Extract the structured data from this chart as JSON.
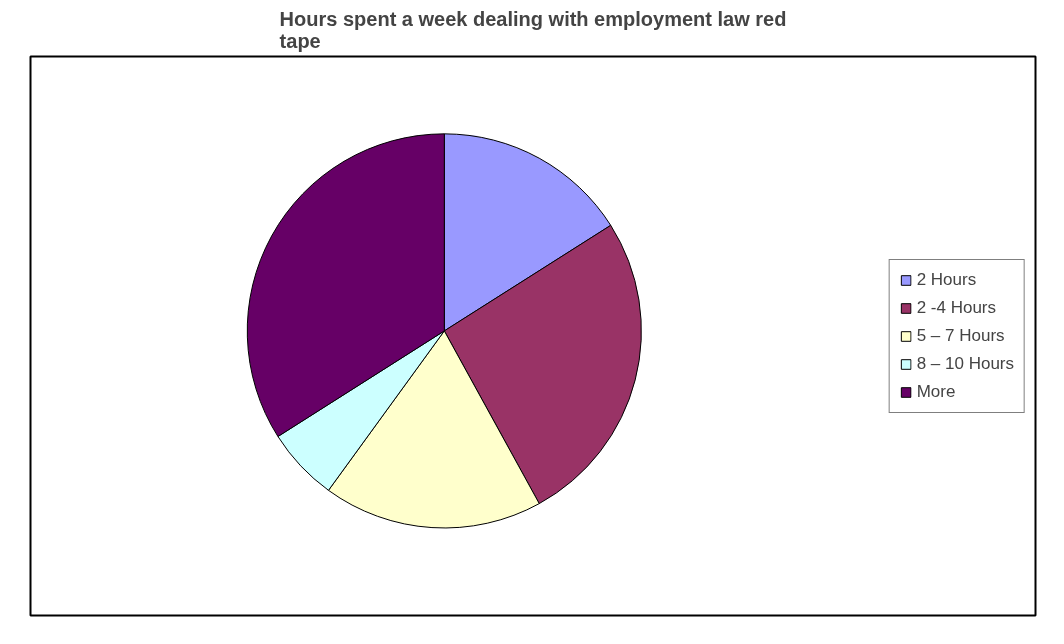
{
  "chart_data": {
    "type": "pie",
    "title": "Hours spent a week dealing with employment law red tape",
    "categories": [
      "2 Hours",
      "2 -4 Hours",
      "5 – 7 Hours",
      "8 – 10 Hours",
      "More"
    ],
    "values": [
      16,
      26,
      18,
      6,
      34
    ],
    "colors": [
      "#9999ff",
      "#993366",
      "#ffffcc",
      "#ccffff",
      "#660066"
    ],
    "legend": "right"
  }
}
